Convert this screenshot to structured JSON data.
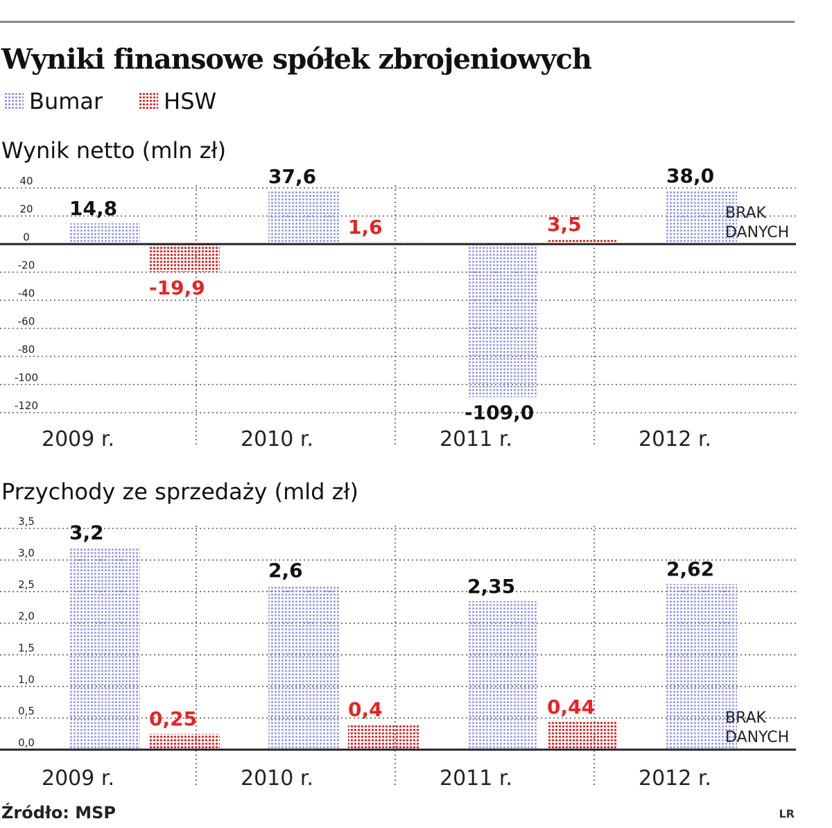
{
  "title": "Wyniki finansowe spółek zbrojeniowych",
  "legend": [
    {
      "name": "Bumar",
      "color": "#8f94f2"
    },
    {
      "name": "HSW",
      "color": "#e62323"
    }
  ],
  "source": "Źródło: MSP",
  "credit": "LR",
  "chart_data": [
    {
      "type": "bar",
      "title": "Wynik netto (mln zł)",
      "categories": [
        "2009 r.",
        "2010 r.",
        "2011 r.",
        "2012 r."
      ],
      "series": [
        {
          "name": "Bumar",
          "values": [
            14.8,
            37.6,
            -109.0,
            38.0
          ],
          "labels": [
            "14,8",
            "37,6",
            "-109,0",
            "38,0"
          ],
          "color": "#8f94f2"
        },
        {
          "name": "HSW",
          "values": [
            -19.9,
            1.6,
            3.5,
            null
          ],
          "labels": [
            "-19,9",
            "1,6",
            "3,5",
            null
          ],
          "color": "#e62323"
        }
      ],
      "yticks": [
        40,
        20,
        0,
        -20,
        -40,
        -60,
        -80,
        -100,
        -120
      ],
      "ytick_labels": [
        "40",
        "20",
        "0",
        "-20",
        "-40",
        "-60",
        "-80",
        "-100",
        "-120"
      ],
      "ylim": [
        -120,
        40
      ],
      "no_data_label": [
        "BRAK",
        "DANYCH"
      ],
      "grid": true
    },
    {
      "type": "bar",
      "title": "Przychody ze sprzedaży (mld zł)",
      "categories": [
        "2009 r.",
        "2010 r.",
        "2011 r.",
        "2012 r."
      ],
      "series": [
        {
          "name": "Bumar",
          "values": [
            3.2,
            2.6,
            2.35,
            2.62
          ],
          "labels": [
            "3,2",
            "2,6",
            "2,35",
            "2,62"
          ],
          "color": "#8f94f2"
        },
        {
          "name": "HSW",
          "values": [
            0.25,
            0.4,
            0.44,
            null
          ],
          "labels": [
            "0,25",
            "0,4",
            "0,44",
            null
          ],
          "color": "#e62323"
        }
      ],
      "yticks": [
        3.5,
        3.0,
        2.5,
        2.0,
        1.5,
        1.0,
        0.5,
        0.0
      ],
      "ytick_labels": [
        "3,5",
        "3,0",
        "2,5",
        "2,0",
        "1,5",
        "1,0",
        "0,5",
        "0,0"
      ],
      "ylim": [
        0,
        3.5
      ],
      "no_data_label": [
        "BRAK",
        "DANYCH"
      ],
      "grid": true
    }
  ]
}
